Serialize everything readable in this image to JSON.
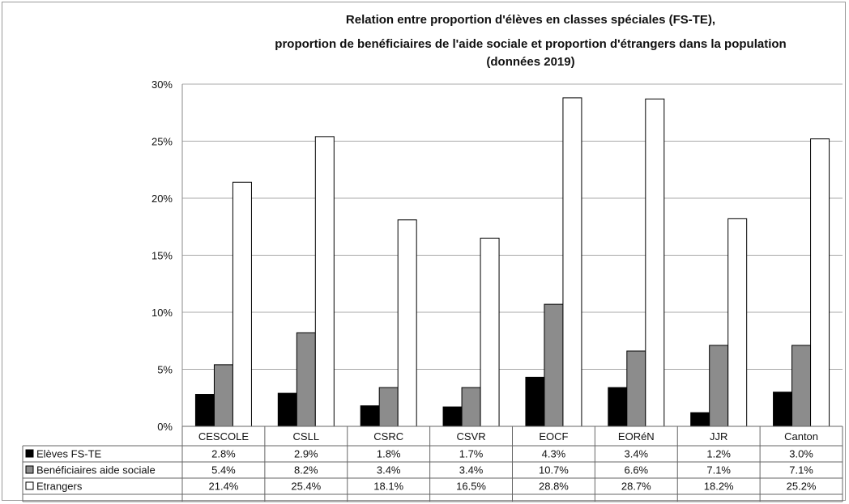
{
  "chart_data": {
    "type": "bar",
    "title_lines": [
      "Relation entre proportion d'élèves en classes spéciales (FS-TE),",
      "proportion de benéficiaires de l'aide sociale et proportion d'étrangers dans la population",
      "(données 2019)"
    ],
    "categories": [
      "CESCOLE",
      "CSLL",
      "CSRC",
      "CSVR",
      "EOCF",
      "EORéN",
      "JJR",
      "Canton"
    ],
    "series": [
      {
        "name": "Elèves FS-TE",
        "color": "#000000",
        "values": [
          2.8,
          2.9,
          1.8,
          1.7,
          4.3,
          3.4,
          1.2,
          3.0
        ],
        "labels": [
          "2.8%",
          "2.9%",
          "1.8%",
          "1.7%",
          "4.3%",
          "3.4%",
          "1.2%",
          "3.0%"
        ]
      },
      {
        "name": "Benéficiaires aide sociale",
        "color": "#8c8c8c",
        "values": [
          5.4,
          8.2,
          3.4,
          3.4,
          10.7,
          6.6,
          7.1,
          7.1
        ],
        "labels": [
          "5.4%",
          "8.2%",
          "3.4%",
          "3.4%",
          "10.7%",
          "6.6%",
          "7.1%",
          "7.1%"
        ]
      },
      {
        "name": "Etrangers",
        "color": "#ffffff",
        "values": [
          21.4,
          25.4,
          18.1,
          16.5,
          28.8,
          28.7,
          18.2,
          25.2
        ],
        "labels": [
          "21.4%",
          "25.4%",
          "18.1%",
          "16.5%",
          "28.8%",
          "28.7%",
          "18.2%",
          "25.2%"
        ]
      }
    ],
    "ylim": [
      0,
      30
    ],
    "yticks": [
      "0%",
      "5%",
      "10%",
      "15%",
      "20%",
      "25%",
      "30%"
    ],
    "grid": true,
    "legend": "data-table"
  }
}
